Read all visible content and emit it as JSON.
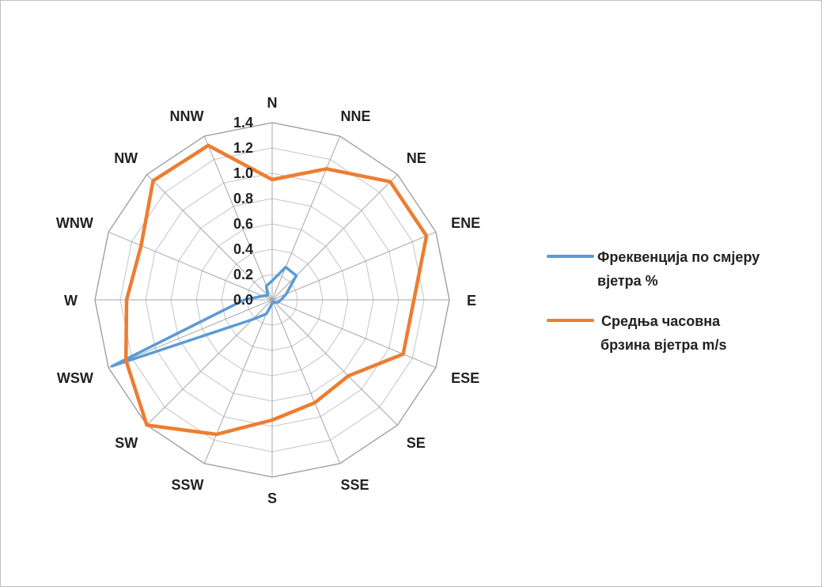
{
  "chart_data": {
    "type": "radar",
    "categories": [
      "N",
      "NNE",
      "NE",
      "ENE",
      "E",
      "ESE",
      "SE",
      "SSE",
      "S",
      "SSW",
      "SW",
      "WSW",
      "W",
      "WNW",
      "NW",
      "NNW"
    ],
    "radial_axis": {
      "min": 0.0,
      "max": 1.4,
      "step": 0.2,
      "tick_labels": [
        "0.0",
        "0.2",
        "0.4",
        "0.6",
        "0.8",
        "1.0",
        "1.2",
        "1.4"
      ]
    },
    "grid": true,
    "legend_position": "right",
    "series": [
      {
        "name": "Фреквенција по смјеру вјетра %",
        "color": "#5b9bd5",
        "values": [
          0.15,
          0.28,
          0.27,
          0.12,
          0.07,
          0.05,
          0.03,
          0.02,
          0.03,
          0.12,
          0.22,
          1.37,
          0.22,
          0.08,
          0.05,
          0.12
        ]
      },
      {
        "name": "Средња часовна брзина вјетра m/s",
        "color": "#ed7d31",
        "values": [
          0.95,
          1.12,
          1.32,
          1.32,
          1.12,
          1.12,
          0.85,
          0.88,
          0.95,
          1.15,
          1.4,
          1.25,
          1.15,
          1.12,
          1.33,
          1.32
        ]
      }
    ]
  },
  "legend": {
    "items": [
      {
        "line1": "Фреквенција по смјеру",
        "line2": "вјетра %",
        "color": "#5b9bd5"
      },
      {
        "line1": " Средња часовна",
        "line2": "брзина вјетра m/s",
        "color": "#ed7d31"
      }
    ]
  }
}
